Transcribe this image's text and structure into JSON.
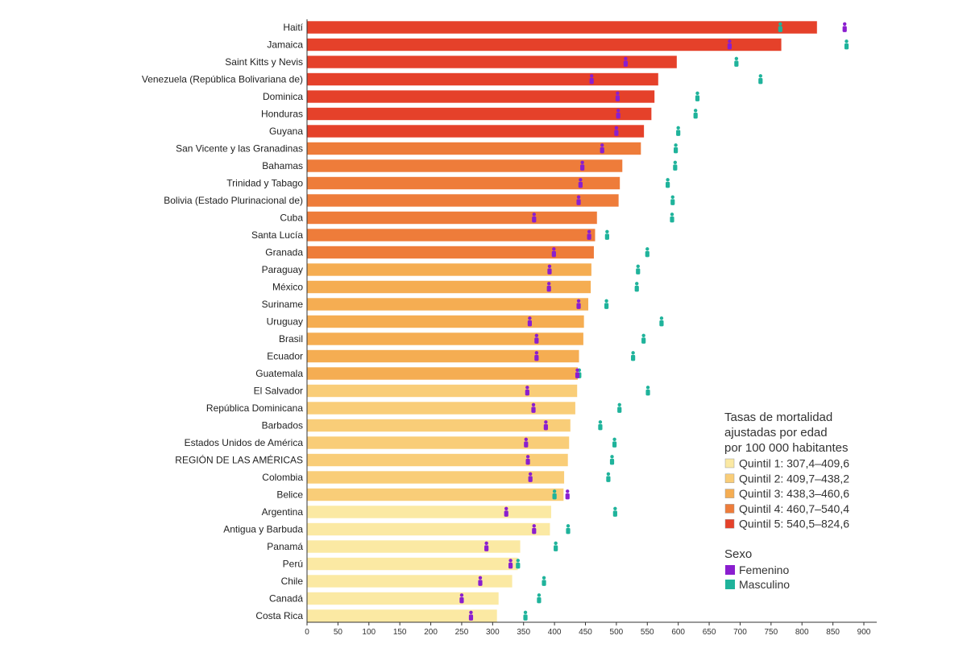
{
  "chart_data": {
    "type": "bar",
    "orientation": "horizontal",
    "xlim": [
      0,
      900
    ],
    "x_ticks": [
      0,
      50,
      100,
      150,
      200,
      250,
      300,
      350,
      400,
      450,
      500,
      550,
      600,
      650,
      700,
      750,
      800,
      850,
      900
    ],
    "categories": [
      "Haití",
      "Jamaica",
      "Saint Kitts y Nevis",
      "Venezuela (República Bolivariana de)",
      "Dominica",
      "Honduras",
      "Guyana",
      "San Vicente y las Granadinas",
      "Bahamas",
      "Trinidad y Tabago",
      "Bolivia (Estado Plurinacional de)",
      "Cuba",
      "Santa Lucía",
      "Granada",
      "Paraguay",
      "México",
      "Suriname",
      "Uruguay",
      "Brasil",
      "Ecuador",
      "Guatemala",
      "El Salvador",
      "República Dominicana",
      "Barbados",
      "Estados Unidos de América",
      "REGIÓN DE LAS AMÉRICAS",
      "Colombia",
      "Belice",
      "Argentina",
      "Antigua y Barbuda",
      "Panamá",
      "Perú",
      "Chile",
      "Canadá",
      "Costa Rica"
    ],
    "values": [
      824.6,
      767,
      598,
      568,
      562,
      557,
      545,
      540,
      510,
      506,
      504,
      469,
      466,
      464,
      460,
      459,
      455,
      448,
      447,
      440,
      438,
      437,
      434,
      426,
      424,
      422,
      416,
      415,
      395,
      393,
      345,
      341,
      332,
      310,
      307.4
    ],
    "quintile": [
      5,
      5,
      5,
      5,
      5,
      5,
      5,
      4,
      4,
      4,
      4,
      4,
      4,
      4,
      3,
      3,
      3,
      3,
      3,
      3,
      3,
      2,
      2,
      2,
      2,
      2,
      2,
      2,
      1,
      1,
      1,
      1,
      1,
      1,
      1
    ],
    "series": [
      {
        "name": "Femenino",
        "values": [
          869,
          683,
          515,
          460,
          502,
          503,
          500,
          477,
          445,
          442,
          439,
          367,
          456,
          399,
          392,
          391,
          439,
          360,
          371,
          371,
          437,
          356,
          366,
          386,
          354,
          357,
          361,
          421,
          322,
          367,
          290,
          329,
          280,
          250,
          265
        ]
      },
      {
        "name": "Masculino",
        "values": [
          765,
          872,
          694,
          733,
          631,
          628,
          600,
          596,
          595,
          583,
          591,
          590,
          485,
          550,
          535,
          533,
          484,
          573,
          544,
          527,
          440,
          551,
          505,
          474,
          497,
          493,
          487,
          400,
          498,
          422,
          402,
          341,
          383,
          375,
          353
        ]
      }
    ],
    "legend": {
      "title_lines": [
        "Tasas de mortalidad",
        "ajustadas por edad",
        "por 100 000 habitantes"
      ],
      "quintiles": [
        "Quintil 1: 307,4–409,6",
        "Quintil 2: 409,7–438,2",
        "Quintil 3: 438,3–460,6",
        "Quintil 4: 460,7–540,4",
        "Quintil 5: 540,5–824,6"
      ],
      "sex_title": "Sexo",
      "sex_items": [
        "Femenino",
        "Masculino"
      ],
      "position": "bottom-right"
    },
    "colors": {
      "q1": "#fbe9a3",
      "q2": "#f9cd78",
      "q3": "#f5ad52",
      "q4": "#ee7c3a",
      "q5": "#e5412a",
      "femenino": "#8a1ecf",
      "masculino": "#1fb39b"
    }
  }
}
